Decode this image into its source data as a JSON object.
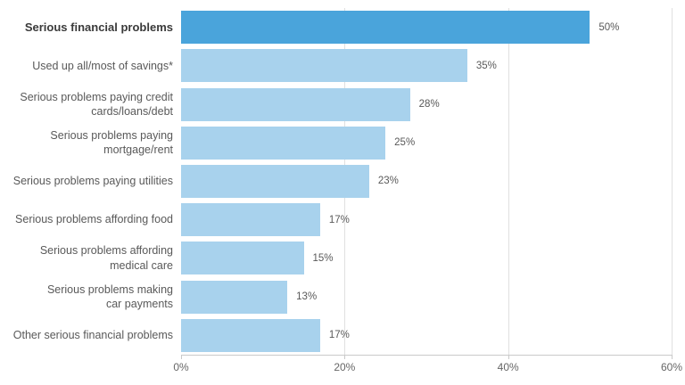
{
  "chart_data": {
    "type": "bar",
    "orientation": "horizontal",
    "title": "",
    "categories": [
      "Serious financial problems",
      "Used up all/most of savings*",
      "Serious problems paying credit\ncards/loans/debt",
      "Serious problems paying\nmortgage/rent",
      "Serious problems paying utilities",
      "Serious problems affording food",
      "Serious problems affording\nmedical care",
      "Serious problems making\ncar payments",
      "Other serious financial problems"
    ],
    "values": [
      50,
      35,
      28,
      25,
      23,
      17,
      15,
      13,
      17
    ],
    "value_labels": [
      "50%",
      "35%",
      "28%",
      "25%",
      "23%",
      "17%",
      "15%",
      "13%",
      "17%"
    ],
    "highlight_index": 0,
    "xlim": [
      0,
      60
    ],
    "x_tick_values": [
      0,
      20,
      40,
      60
    ],
    "x_tick_labels": [
      "0%",
      "20%",
      "40%",
      "60%"
    ],
    "gridline_values": [
      20,
      40,
      60
    ],
    "legend": "none",
    "colors": {
      "bar": "#a8d2ed",
      "highlight_bar": "#4aa4db",
      "category_label": "#595959",
      "highlight_category_label": "#3a3a3a",
      "value_label": "#595959",
      "tick_label": "#666666",
      "gridline": "#e0e0e0",
      "axis_line": "#c9c9c9",
      "background": "#ffffff"
    }
  }
}
